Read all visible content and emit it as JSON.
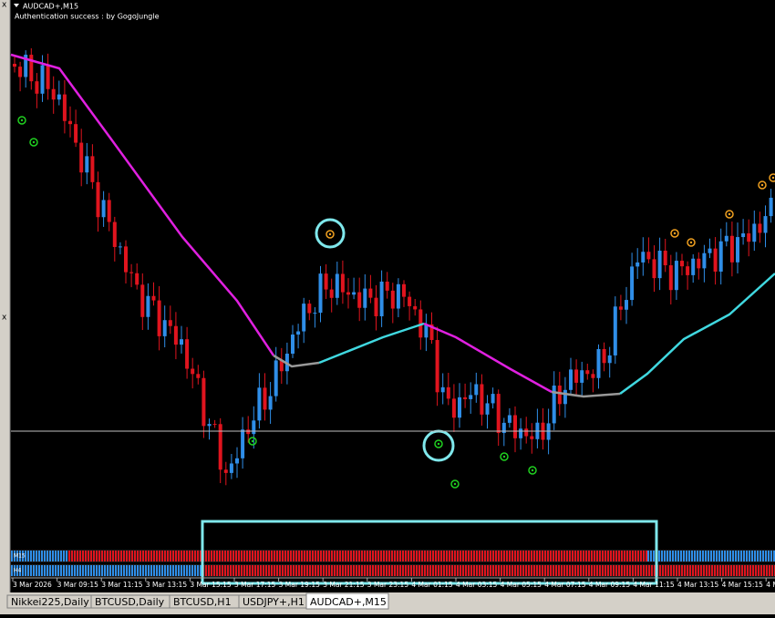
{
  "window": {
    "title": "AUDCAD+,M15",
    "subtitle": "Authentication success : by GogoJungle"
  },
  "strips": {
    "labels": [
      "M15",
      "H4"
    ]
  },
  "time_axis": {
    "labels": [
      "3 Mar 2026",
      "3 Mar 09:15",
      "3 Mar 11:15",
      "3 Mar 13:15",
      "3 Mar 15:15",
      "3 Mar 17:15",
      "3 Mar 19:15",
      "3 Mar 21:15",
      "3 Mar 23:15",
      "4 Mar 01:15",
      "4 Mar 03:15",
      "4 Mar 05:15",
      "4 Mar 07:15",
      "4 Mar 09:15",
      "4 Mar 11:15",
      "4 Mar 13:15",
      "4 Mar 15:15",
      "4 Mar 1"
    ]
  },
  "tabs": {
    "labels": [
      "Nikkei225,Daily",
      "BTCUSD,Daily",
      "BTCUSD,H1",
      "USDJPY+,H1",
      "AUDCAD+,M15"
    ]
  }
}
